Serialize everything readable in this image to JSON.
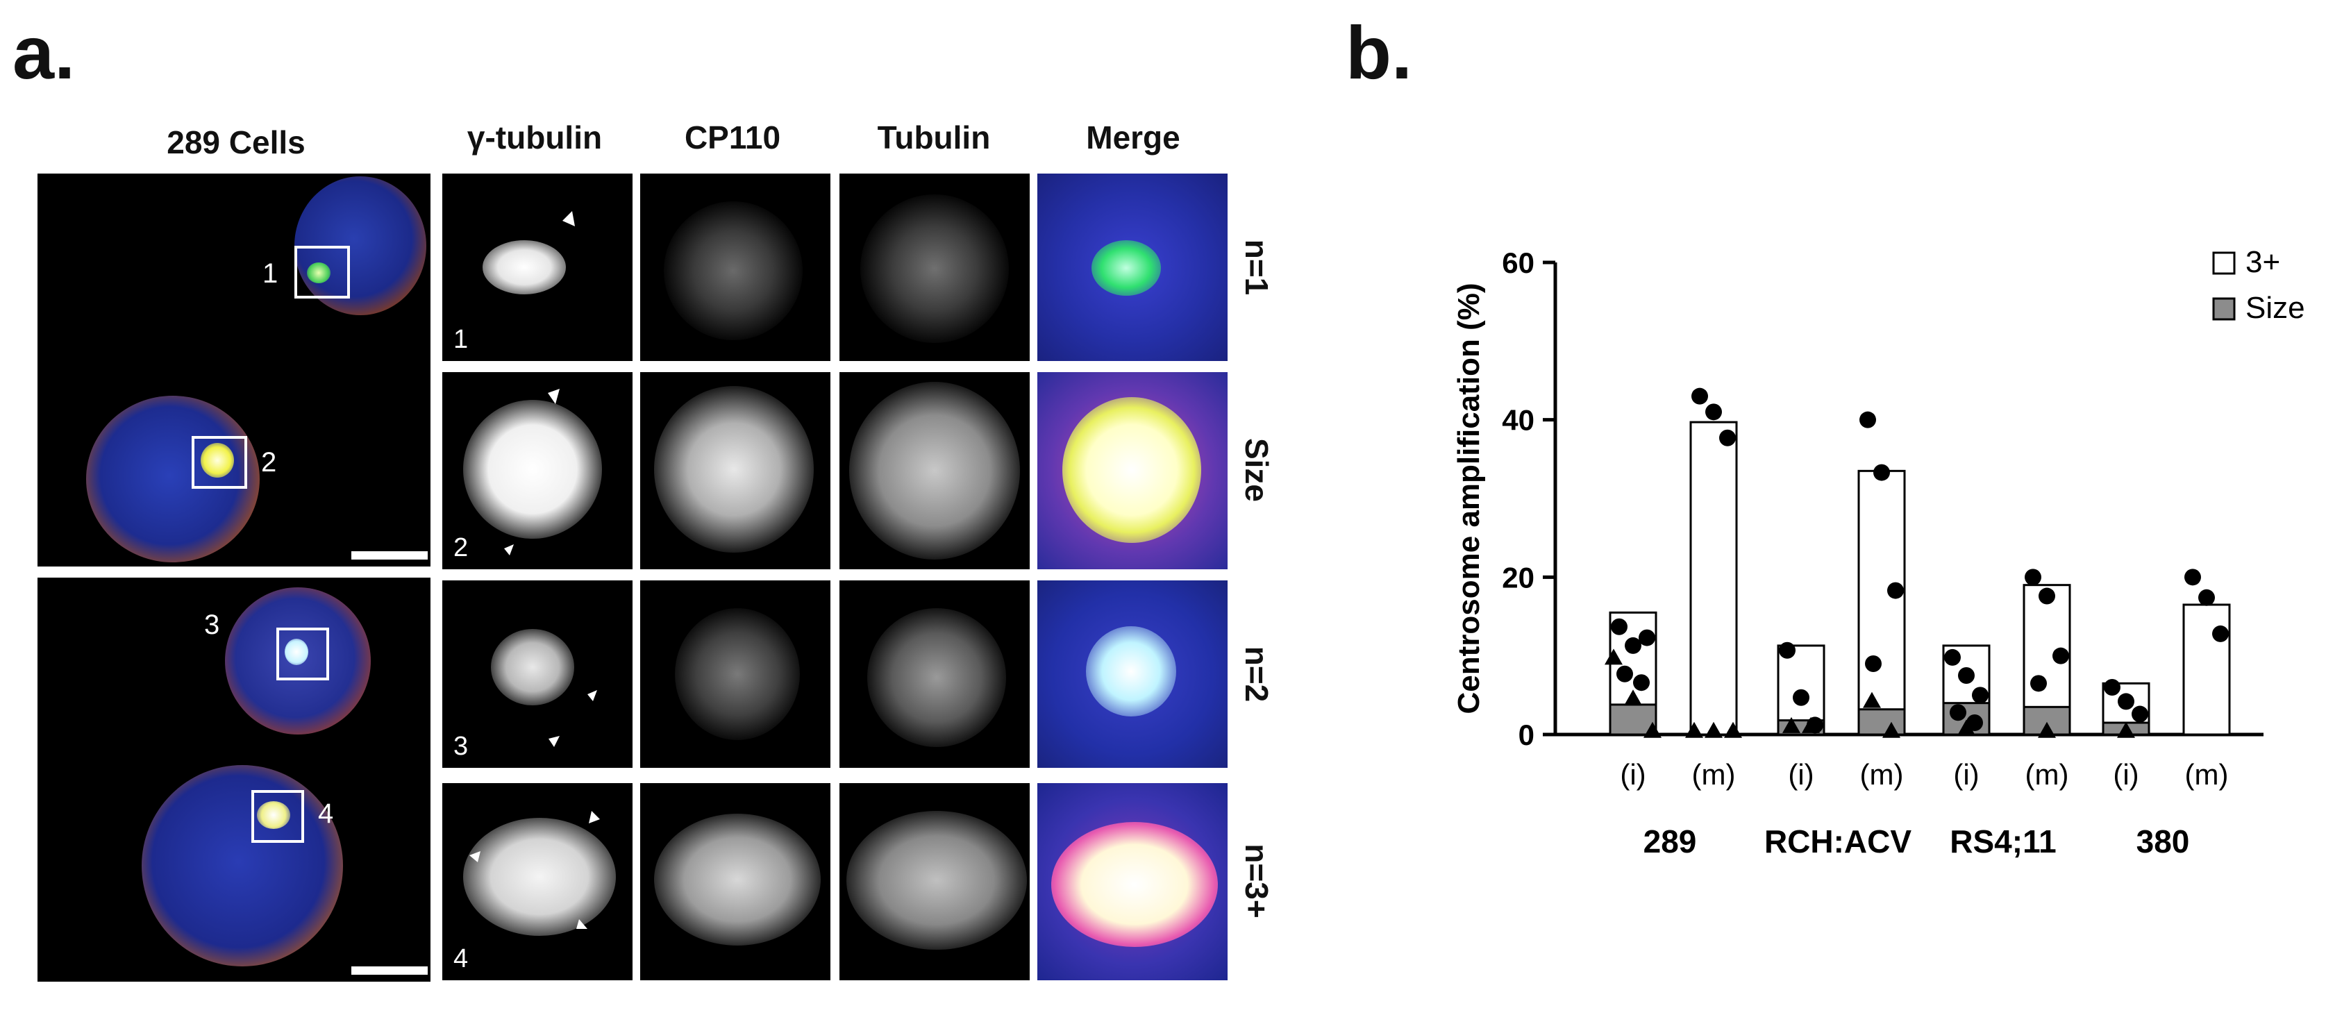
{
  "panel_a": {
    "letter": "a.",
    "column_headers": [
      "289 Cells",
      "γ-tubulin",
      "CP110",
      "Tubulin",
      "Merge"
    ],
    "row_labels": [
      "n=1",
      "Size",
      "n=2",
      "n=3+"
    ],
    "cell_numbers": [
      "1",
      "2",
      "3",
      "4"
    ]
  },
  "panel_b": {
    "letter": "b."
  },
  "chart_data": {
    "type": "bar",
    "ylabel": "Centrosome amplification (%)",
    "ylim": [
      0,
      60
    ],
    "yticks": [
      0,
      20,
      40,
      60
    ],
    "groups": [
      "289",
      "RCH:ACV",
      "RS4;11",
      "380"
    ],
    "subcategories": [
      "(i)",
      "(m)"
    ],
    "categories": [
      "289 (i)",
      "289 (m)",
      "RCH:ACV (i)",
      "RCH:ACV (m)",
      "RS4;11 (i)",
      "RS4;11 (m)",
      "380 (i)",
      "380 (m)"
    ],
    "legend": [
      {
        "label": "3+",
        "color": "#ffffff"
      },
      {
        "label": "Size",
        "color": "#8c8c8c"
      }
    ],
    "legend_position": "top-right",
    "series": [
      {
        "name": "3+",
        "values": [
          15.5,
          39.7,
          11.3,
          33.5,
          11.3,
          19.0,
          6.5,
          16.5
        ]
      },
      {
        "name": "Size",
        "values": [
          3.8,
          0,
          1.8,
          3.2,
          4.0,
          3.5,
          1.5,
          0
        ]
      }
    ],
    "points": {
      "circles": [
        [
          [
            0,
            13.7
          ],
          [
            0,
            11.3
          ],
          [
            0,
            12.3
          ],
          [
            0,
            7.7
          ],
          [
            0,
            6.6
          ]
        ],
        [
          [
            1,
            43.0
          ],
          [
            1,
            41.0
          ],
          [
            1,
            37.7
          ]
        ],
        [
          [
            2,
            10.7
          ],
          [
            2,
            4.7
          ],
          [
            2,
            1.2
          ]
        ],
        [
          [
            3,
            40.0
          ],
          [
            3,
            33.3
          ],
          [
            3,
            18.3
          ],
          [
            3,
            9.0
          ]
        ],
        [
          [
            4,
            9.8
          ],
          [
            4,
            7.5
          ],
          [
            4,
            5.0
          ],
          [
            4,
            2.8
          ],
          [
            4,
            1.5
          ]
        ],
        [
          [
            5,
            20.0
          ],
          [
            5,
            17.6
          ],
          [
            5,
            10.0
          ],
          [
            5,
            6.5
          ]
        ],
        [
          [
            6,
            6.0
          ],
          [
            6,
            4.2
          ],
          [
            6,
            2.6
          ]
        ],
        [
          [
            7,
            20.0
          ],
          [
            7,
            17.4
          ],
          [
            7,
            12.8
          ]
        ]
      ],
      "triangles": [
        [
          [
            0,
            9.5
          ],
          [
            0,
            4.3
          ],
          [
            0,
            0.2
          ]
        ],
        [
          [
            1,
            0.2
          ],
          [
            1,
            0.2
          ],
          [
            1,
            0.2
          ]
        ],
        [
          [
            2,
            0.8
          ],
          [
            2,
            0.8
          ]
        ],
        [
          [
            3,
            4.0
          ],
          [
            3,
            0.2
          ]
        ],
        [
          [
            4,
            0.5
          ]
        ],
        [
          [
            5,
            0.2
          ]
        ],
        [
          [
            6,
            0.2
          ]
        ],
        []
      ]
    }
  }
}
